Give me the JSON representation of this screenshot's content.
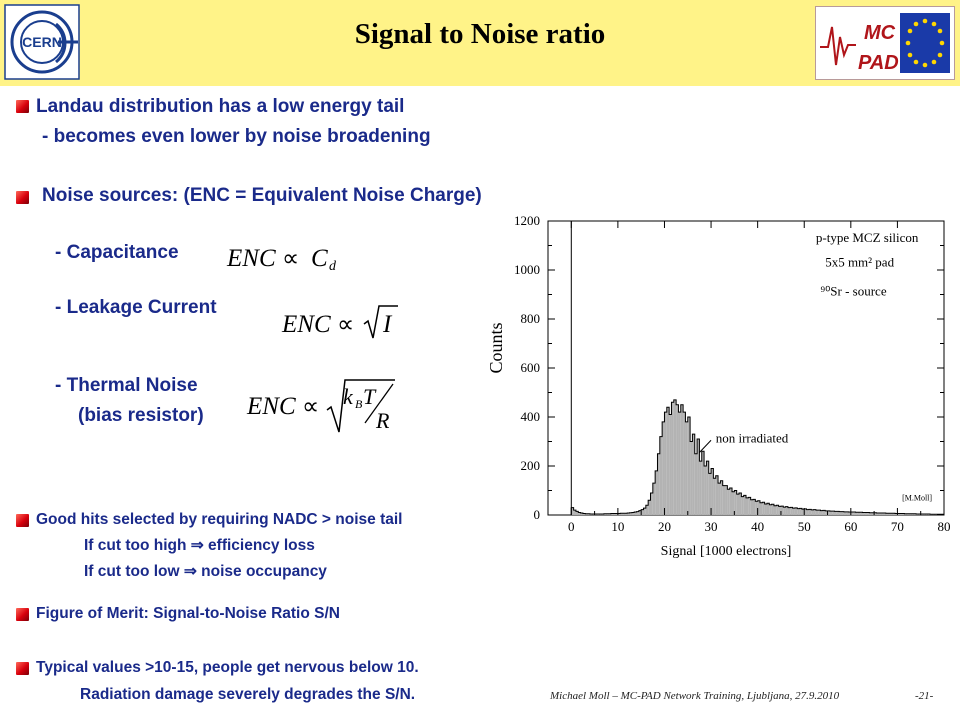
{
  "header": {
    "title": "Signal to Noise ratio",
    "cern_logo_text": "CERN",
    "mcpad_logo_text": [
      "MC",
      "PAD"
    ]
  },
  "bullets": {
    "landau_line1": "Landau distribution has a low energy tail",
    "landau_line2": "- becomes even lower by noise broadening",
    "noise_sources": "Noise sources: (ENC = Equivalent Noise Charge)",
    "capacitance": "- Capacitance",
    "leakage": "- Leakage Current",
    "thermal_line1": "- Thermal Noise",
    "thermal_line2": "(bias resistor)",
    "goodhits_line1": "Good hits selected by requiring NADC > noise tail",
    "goodhits_line2": "If cut too high ⇒ efficiency loss",
    "goodhits_line3": "If cut too low  ⇒ noise occupancy",
    "merit": "Figure of Merit: Signal-to-Noise Ratio S/N",
    "typical_line1": "Typical values >10-15, people get nervous below 10.",
    "typical_line2": "Radiation damage severely degrades the S/N."
  },
  "formulas": {
    "enc": "ENC",
    "propto": "∝",
    "c": "C",
    "d": "d",
    "i": "I",
    "kb": "k",
    "b": "B",
    "t": "T",
    "r": "R"
  },
  "footer": {
    "author": "Michael Moll – MC-PAD Network Training, Ljubljana, 27.9.2010",
    "page": "-21-"
  },
  "chart_data": {
    "type": "bar",
    "xlabel": "Signal [1000 electrons]",
    "ylabel": "Counts",
    "xlim": [
      -5,
      80
    ],
    "ylim": [
      0,
      1200
    ],
    "xticks": [
      0,
      10,
      20,
      30,
      40,
      50,
      60,
      70,
      80
    ],
    "yticks": [
      0,
      200,
      400,
      600,
      800,
      1000,
      1200
    ],
    "annotations": [
      "p-type MCZ silicon",
      "5x5 mm² pad",
      "⁹⁰Sr - source",
      "non irradiated",
      "[M.Moll]"
    ],
    "series": [
      {
        "name": "non irradiated",
        "bin_width": 0.5,
        "x": [
          0,
          0.5,
          1,
          1.5,
          2,
          2.5,
          3,
          3.5,
          4,
          4.5,
          5,
          5.5,
          6,
          6.5,
          7,
          7.5,
          8,
          8.5,
          9,
          9.5,
          10,
          10.5,
          11,
          11.5,
          12,
          12.5,
          13,
          13.5,
          14,
          14.5,
          15,
          15.5,
          16,
          16.5,
          17,
          17.5,
          18,
          18.5,
          19,
          19.5,
          20,
          20.5,
          21,
          21.5,
          22,
          22.5,
          23,
          23.5,
          24,
          24.5,
          25,
          25.5,
          26,
          26.5,
          27,
          27.5,
          28,
          28.5,
          29,
          29.5,
          30,
          30.5,
          31,
          31.5,
          32,
          32.5,
          33,
          33.5,
          34,
          34.5,
          35,
          35.5,
          36,
          36.5,
          37,
          37.5,
          38,
          38.5,
          39,
          39.5,
          40,
          40.5,
          41,
          41.5,
          42,
          42.5,
          43,
          43.5,
          44,
          44.5,
          45,
          45.5,
          46,
          46.5,
          47,
          47.5,
          48,
          48.5,
          49,
          49.5,
          50,
          50.5,
          51,
          51.5,
          52,
          52.5,
          53,
          53.5,
          54,
          54.5,
          55,
          55.5,
          56,
          56.5,
          57,
          57.5,
          58,
          58.5,
          59,
          59.5,
          60,
          60.5,
          61,
          61.5,
          62,
          62.5,
          63,
          63.5,
          64,
          64.5,
          65,
          65.5,
          66,
          66.5,
          67,
          67.5,
          68,
          68.5,
          69,
          69.5,
          70,
          70.5,
          71,
          71.5,
          72,
          72.5,
          73,
          73.5,
          74,
          74.5,
          75,
          75.5,
          76,
          76.5,
          77,
          77.5,
          78,
          78.5,
          79,
          79.5
        ],
        "values": [
          30,
          20,
          15,
          10,
          8,
          6,
          5,
          5,
          4,
          4,
          4,
          4,
          4,
          4,
          5,
          5,
          5,
          6,
          6,
          6,
          6,
          7,
          7,
          7,
          8,
          9,
          10,
          12,
          14,
          18,
          22,
          28,
          40,
          60,
          90,
          130,
          180,
          250,
          320,
          380,
          420,
          440,
          410,
          460,
          470,
          450,
          420,
          450,
          420,
          380,
          400,
          300,
          330,
          250,
          310,
          220,
          260,
          200,
          220,
          170,
          190,
          150,
          160,
          130,
          140,
          120,
          120,
          105,
          110,
          95,
          100,
          85,
          90,
          75,
          80,
          70,
          72,
          62,
          64,
          56,
          58,
          50,
          52,
          45,
          48,
          42,
          44,
          38,
          40,
          35,
          36,
          32,
          34,
          30,
          31,
          28,
          29,
          26,
          27,
          24,
          25,
          22,
          23,
          21,
          22,
          20,
          20,
          18,
          19,
          17,
          17,
          16,
          16,
          15,
          15,
          14,
          14,
          13,
          13,
          12,
          12,
          12,
          11,
          11,
          11,
          10,
          10,
          10,
          9,
          9,
          9,
          8,
          8,
          8,
          8,
          7,
          7,
          7,
          7,
          6,
          6,
          6,
          6,
          5,
          5,
          5,
          5,
          5,
          4,
          4,
          4,
          4,
          4,
          4,
          3,
          3,
          3,
          3,
          3,
          3
        ]
      }
    ]
  }
}
